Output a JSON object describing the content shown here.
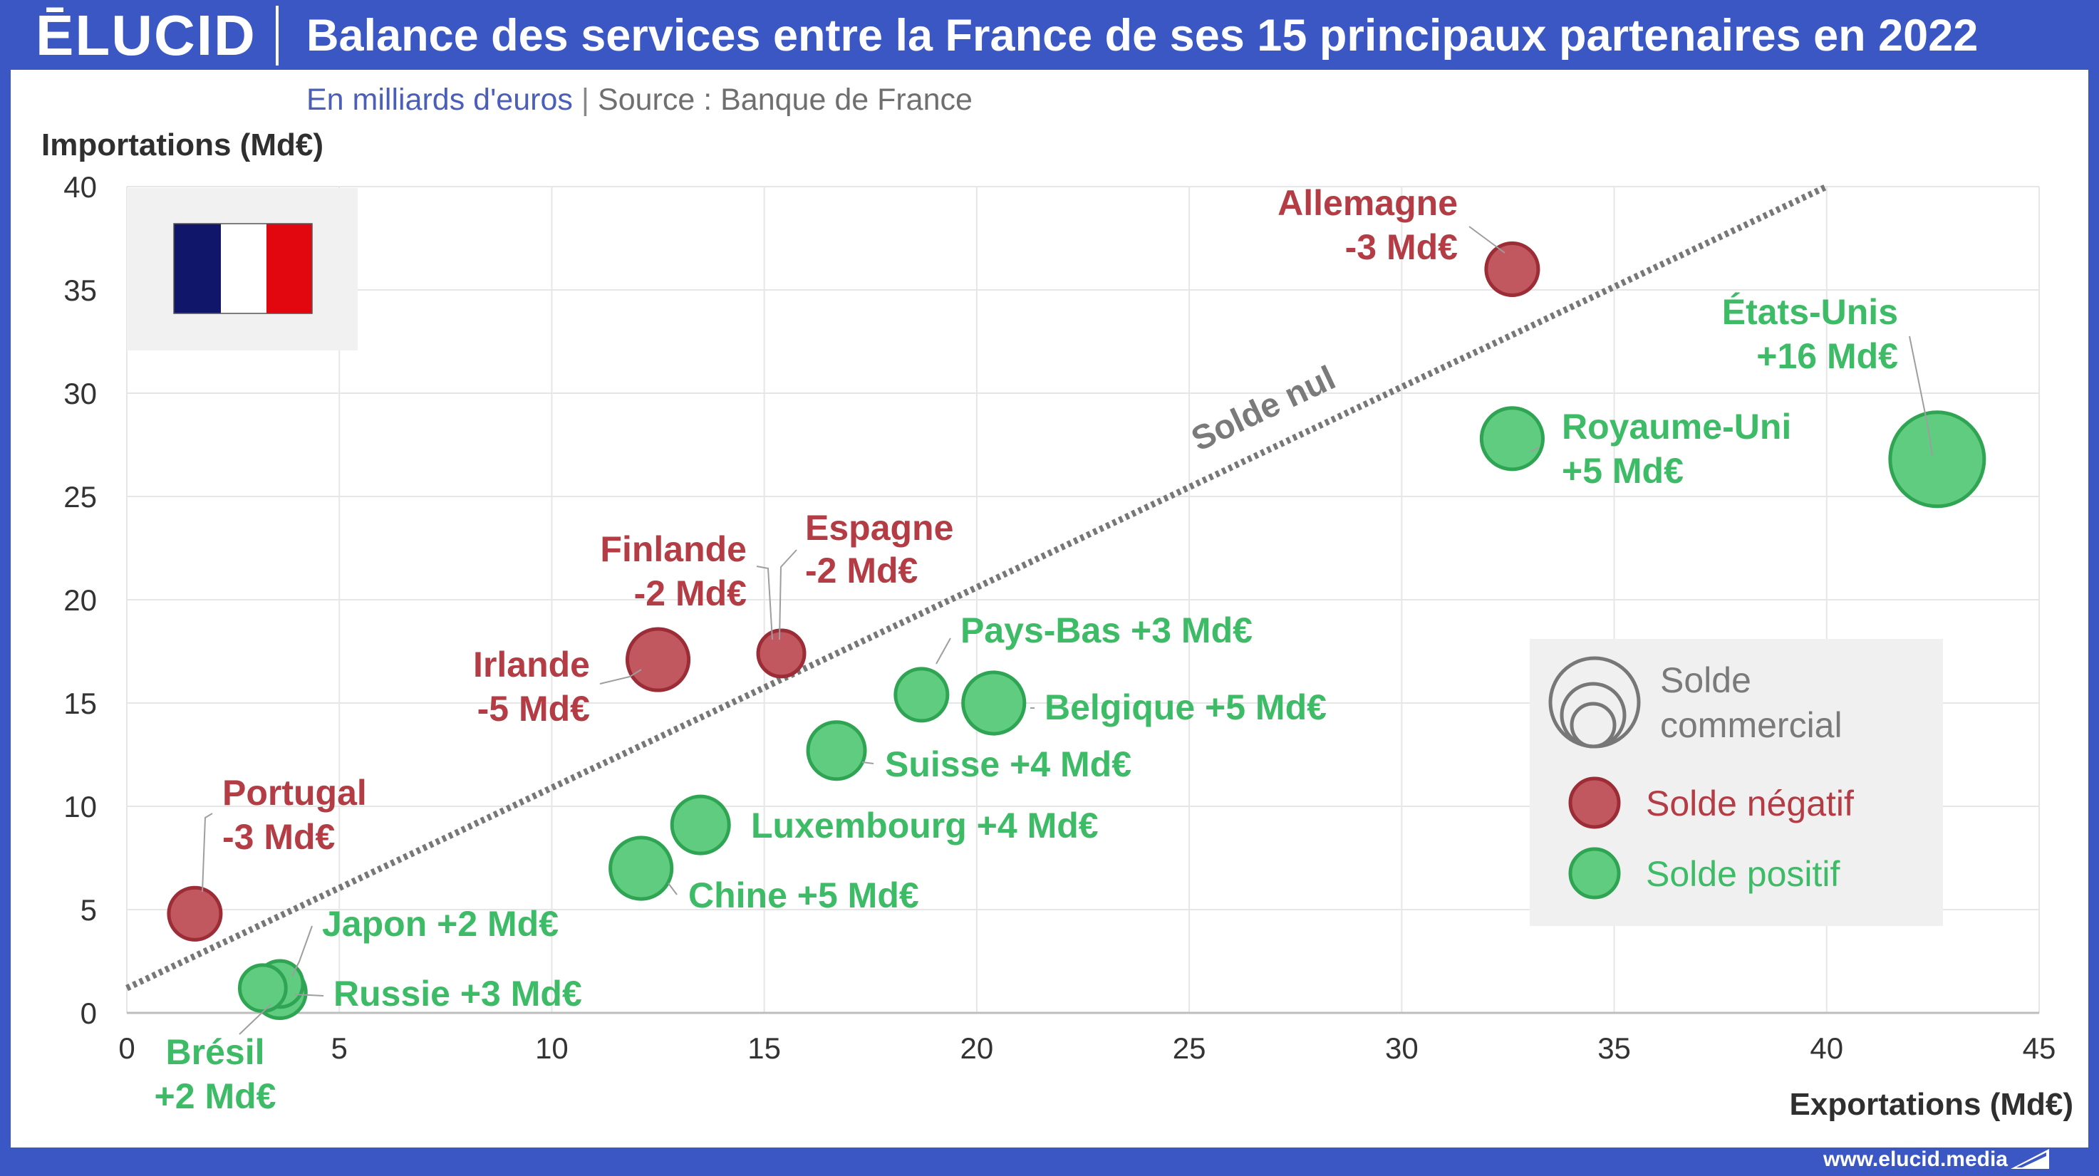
{
  "header": {
    "logo": "ĒLUCID",
    "title": "Balance des services entre la France de ses 15 principaux partenaires en 2022"
  },
  "subheader": {
    "units": "En milliards d'euros",
    "separator": "|",
    "source": "Source : Banque de France"
  },
  "footer": {
    "url": "www.elucid.media"
  },
  "chart_data": {
    "type": "scatter",
    "xlabel": "Exportations (Md€)",
    "ylabel": "Importations (Md€)",
    "xlim": [
      0,
      45
    ],
    "ylim": [
      0,
      40
    ],
    "xticks": [
      0,
      5,
      10,
      15,
      20,
      25,
      30,
      35,
      40,
      45
    ],
    "yticks": [
      0,
      5,
      10,
      15,
      20,
      25,
      30,
      35,
      40
    ],
    "grid": true,
    "bubble_size": "solde commercial",
    "reference_line": {
      "label": "Solde nul",
      "from": [
        0,
        1.2
      ],
      "to": [
        40.0,
        40.0
      ]
    },
    "colors": {
      "negatif": "#c0504d",
      "positif": "#4cc970",
      "reference": "#777777"
    },
    "points": [
      {
        "country": "Allemagne",
        "label": "-3 Md€",
        "x": 32.6,
        "y": 36.0,
        "balance": -3
      },
      {
        "country": "États-Unis",
        "label": "+16 Md€",
        "x": 42.6,
        "y": 26.8,
        "balance": 16
      },
      {
        "country": "Royaume-Uni",
        "label": "+5 Md€",
        "x": 32.6,
        "y": 27.8,
        "balance": 5
      },
      {
        "country": "Espagne",
        "label": "-2 Md€",
        "x": 15.4,
        "y": 17.4,
        "balance": -2
      },
      {
        "country": "Finlande",
        "label": "-2 Md€",
        "x": 15.4,
        "y": 17.4,
        "balance": -2
      },
      {
        "country": "Irlande",
        "label": "-5 Md€",
        "x": 12.5,
        "y": 17.1,
        "balance": -5
      },
      {
        "country": "Pays-Bas",
        "label": "+3 Md€",
        "x": 18.7,
        "y": 15.4,
        "balance": 3
      },
      {
        "country": "Belgique",
        "label": "+5 Md€",
        "x": 20.4,
        "y": 15.0,
        "balance": 5
      },
      {
        "country": "Suisse",
        "label": "+4 Md€",
        "x": 16.7,
        "y": 12.7,
        "balance": 4
      },
      {
        "country": "Luxembourg",
        "label": "+4 Md€",
        "x": 13.5,
        "y": 9.1,
        "balance": 4
      },
      {
        "country": "Chine",
        "label": "+5 Md€",
        "x": 12.1,
        "y": 7.0,
        "balance": 5
      },
      {
        "country": "Portugal",
        "label": "-3 Md€",
        "x": 1.6,
        "y": 4.8,
        "balance": -3
      },
      {
        "country": "Japon",
        "label": "+2 Md€",
        "x": 3.6,
        "y": 1.4,
        "balance": 2
      },
      {
        "country": "Russie",
        "label": "+3 Md€",
        "x": 3.6,
        "y": 1.0,
        "balance": 3
      },
      {
        "country": "Brésil",
        "label": "+2 Md€",
        "x": 3.2,
        "y": 1.2,
        "balance": 2
      }
    ],
    "legend": {
      "size_title_line1": "Solde",
      "size_title_line2": "commercial",
      "negative": "Solde négatif",
      "positive": "Solde positif"
    }
  }
}
